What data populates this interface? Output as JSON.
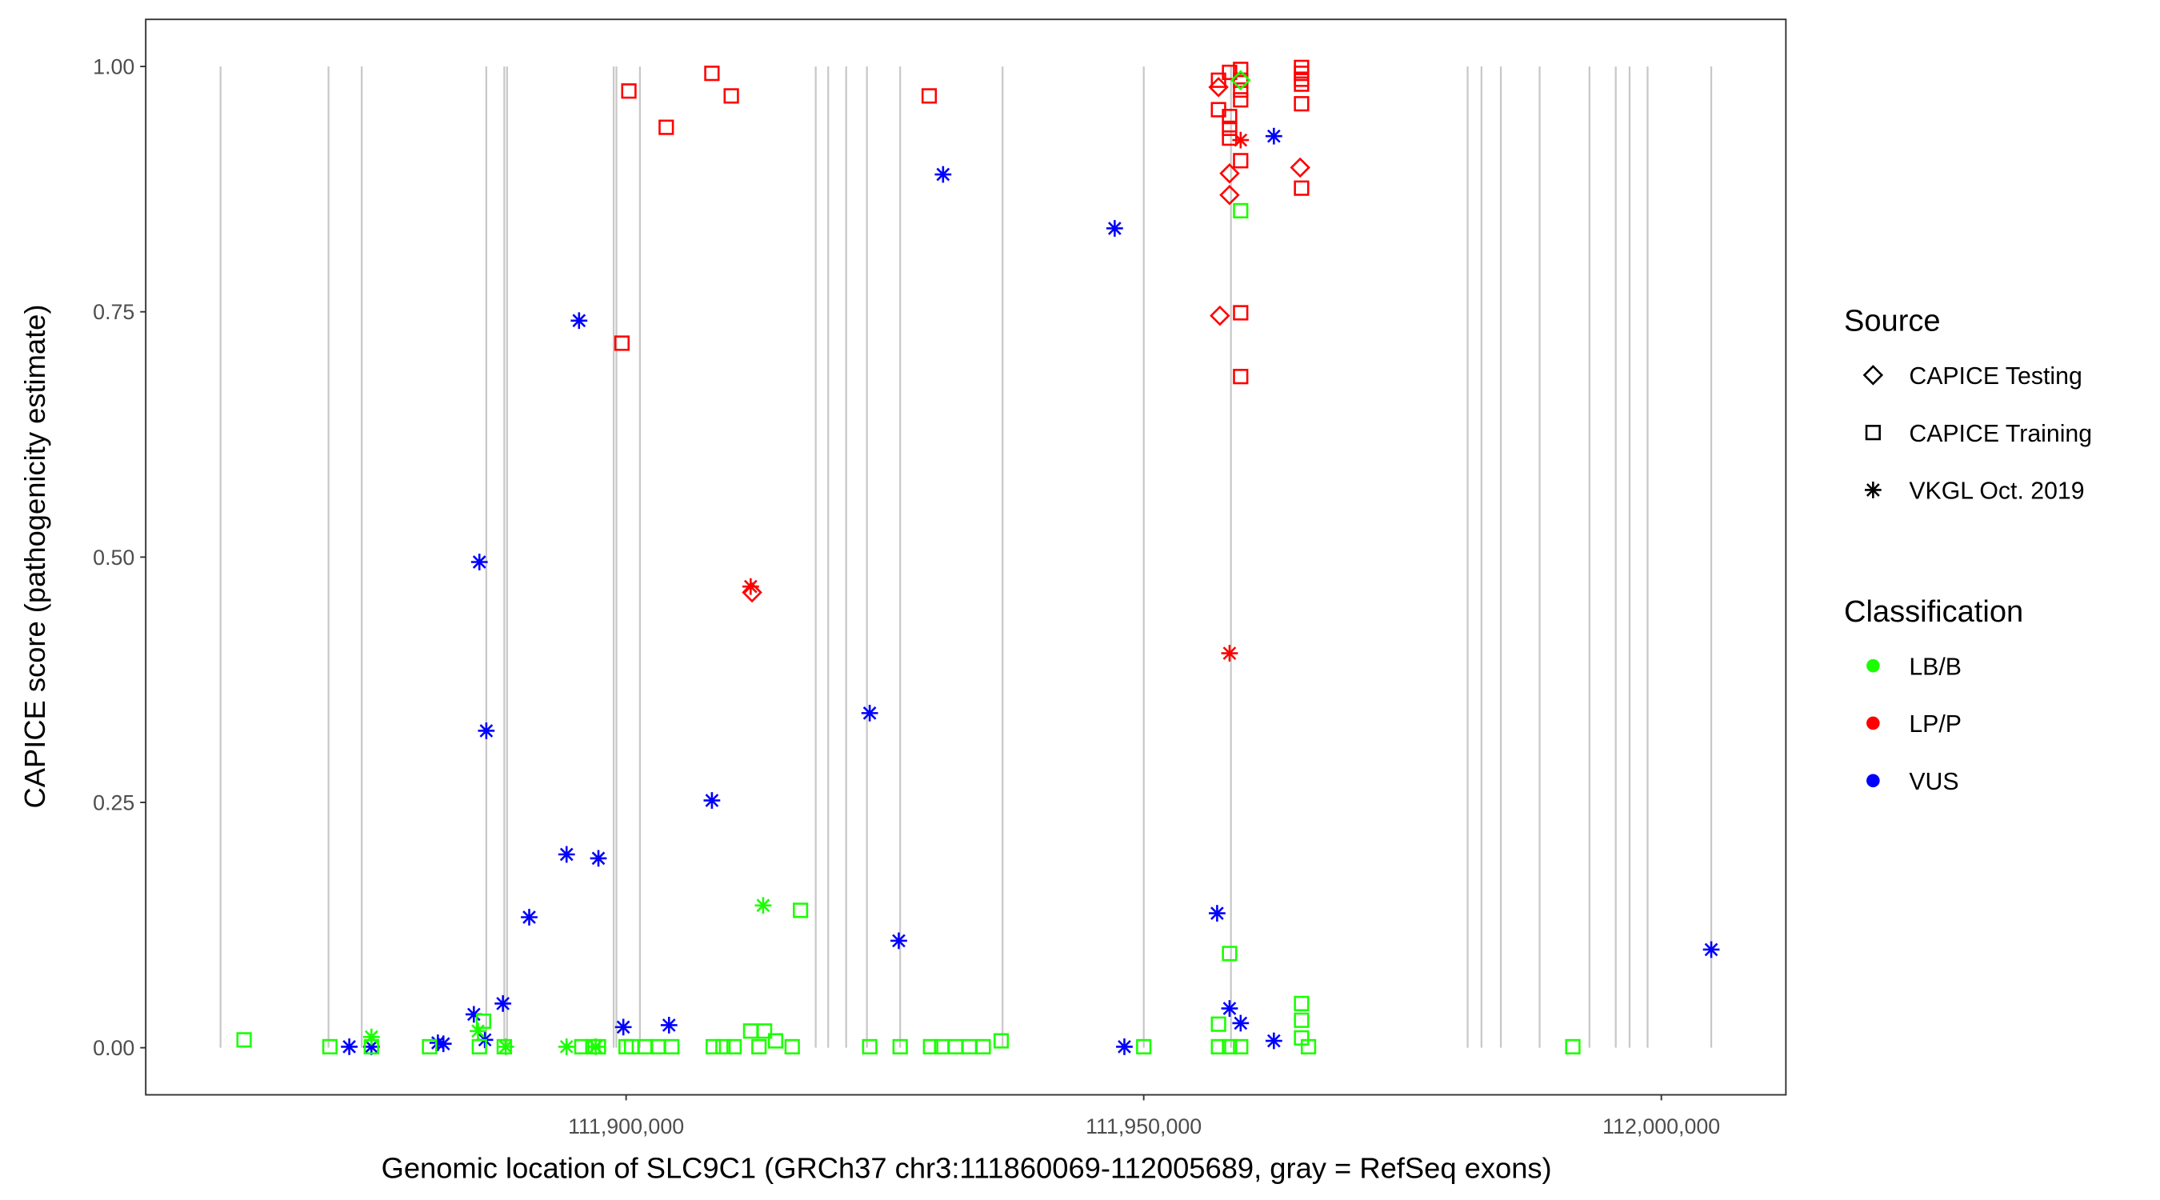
{
  "chart_data": {
    "type": "scatter",
    "title": "",
    "xlabel": "Genomic location of SLC9C1 (GRCh37 chr3:111860069-112005689, gray = RefSeq exons)",
    "ylabel": "CAPICE score (pathogenicity estimate)",
    "xlim": [
      111853600,
      112012030
    ],
    "ylim": [
      -0.048,
      1.048
    ],
    "x_ticks": [
      111900000,
      111950000,
      112000000
    ],
    "x_tick_labels": [
      "111,900,000",
      "111,950,000",
      "112,000,000"
    ],
    "y_ticks": [
      0,
      0.25,
      0.5,
      0.75,
      1.0
    ],
    "y_tick_labels": [
      "0.00",
      "0.25",
      "0.50",
      "0.75",
      "1.00"
    ],
    "grid": false,
    "exon_lines": [
      111860826,
      111871254,
      111874463,
      111886496,
      111888234,
      111888500,
      111898797,
      111899064,
      111901337,
      111918317,
      111919520,
      111921258,
      111923264,
      111926473,
      111936366,
      111950004,
      111958427,
      111981290,
      111982627,
      111984498,
      111988242,
      111993055,
      111995596,
      111996932,
      111998671,
      112004821
    ],
    "legend": {
      "placement": "right",
      "source_title": "Source",
      "source_items": [
        {
          "label": "CAPICE Testing",
          "shape": "diamond"
        },
        {
          "label": "CAPICE Training",
          "shape": "square"
        },
        {
          "label": "VKGL Oct. 2019",
          "shape": "asterisk"
        }
      ],
      "class_title": "Classification",
      "class_items": [
        {
          "label": "LB/B",
          "color": "#1aff00"
        },
        {
          "label": "LP/P",
          "color": "#ff0000"
        },
        {
          "label": "VUS",
          "color": "#0000ff"
        }
      ]
    },
    "points": [
      [
        111908289,
        0.993,
        "square",
        "LP/P"
      ],
      [
        111900267,
        0.975,
        "square",
        "LP/P"
      ],
      [
        111910161,
        0.97,
        "square",
        "LP/P"
      ],
      [
        111929280,
        0.97,
        "square",
        "LP/P"
      ],
      [
        111903877,
        0.938,
        "square",
        "LP/P"
      ],
      [
        111899599,
        0.718,
        "square",
        "LP/P"
      ],
      [
        111957224,
        0.986,
        "square",
        "LP/P"
      ],
      [
        111958293,
        0.994,
        "square",
        "LP/P"
      ],
      [
        111959363,
        0.997,
        "square",
        "LP/P"
      ],
      [
        111959363,
        0.986,
        "square",
        "LP/P"
      ],
      [
        111959363,
        0.976,
        "square",
        "LP/P"
      ],
      [
        111959363,
        0.966,
        "square",
        "LP/P"
      ],
      [
        111957224,
        0.956,
        "square",
        "LP/P"
      ],
      [
        111958293,
        0.949,
        "square",
        "LP/P"
      ],
      [
        111958293,
        0.937,
        "square",
        "LP/P"
      ],
      [
        111958293,
        0.927,
        "square",
        "LP/P"
      ],
      [
        111959363,
        0.904,
        "square",
        "LP/P"
      ],
      [
        111959363,
        0.749,
        "square",
        "LP/P"
      ],
      [
        111959363,
        0.684,
        "square",
        "LP/P"
      ],
      [
        111965246,
        0.999,
        "square",
        "LP/P"
      ],
      [
        111965246,
        0.993,
        "square",
        "LP/P"
      ],
      [
        111965246,
        0.987,
        "square",
        "LP/P"
      ],
      [
        111965246,
        0.982,
        "square",
        "LP/P"
      ],
      [
        111965246,
        0.962,
        "square",
        "LP/P"
      ],
      [
        111965246,
        0.876,
        "square",
        "LP/P"
      ],
      [
        111957224,
        0.979,
        "diamond",
        "LP/P"
      ],
      [
        111958293,
        0.891,
        "diamond",
        "LP/P"
      ],
      [
        111958293,
        0.869,
        "diamond",
        "LP/P"
      ],
      [
        111957357,
        0.746,
        "diamond",
        "LP/P"
      ],
      [
        111965112,
        0.897,
        "diamond",
        "LP/P"
      ],
      [
        111912167,
        0.464,
        "diamond",
        "LP/P"
      ],
      [
        111959363,
        0.986,
        "diamond",
        "LB/B"
      ],
      [
        111912033,
        0.47,
        "asterisk",
        "LP/P"
      ],
      [
        111959363,
        0.925,
        "asterisk",
        "LP/P"
      ],
      [
        111958293,
        0.402,
        "asterisk",
        "LP/P"
      ],
      [
        111885828,
        0.495,
        "asterisk",
        "VUS"
      ],
      [
        111886496,
        0.323,
        "asterisk",
        "VUS"
      ],
      [
        111895454,
        0.741,
        "asterisk",
        "VUS"
      ],
      [
        111894251,
        0.197,
        "asterisk",
        "VUS"
      ],
      [
        111897326,
        0.193,
        "asterisk",
        "VUS"
      ],
      [
        111890641,
        0.133,
        "asterisk",
        "VUS"
      ],
      [
        111908289,
        0.252,
        "asterisk",
        "VUS"
      ],
      [
        111923531,
        0.341,
        "asterisk",
        "VUS"
      ],
      [
        111926339,
        0.109,
        "asterisk",
        "VUS"
      ],
      [
        111930618,
        0.89,
        "asterisk",
        "VUS"
      ],
      [
        111947196,
        0.835,
        "asterisk",
        "VUS"
      ],
      [
        111962572,
        0.929,
        "asterisk",
        "VUS"
      ],
      [
        111957090,
        0.137,
        "asterisk",
        "VUS"
      ],
      [
        112004821,
        0.1,
        "asterisk",
        "VUS"
      ],
      [
        111885293,
        0.034,
        "asterisk",
        "VUS"
      ],
      [
        111888101,
        0.045,
        "asterisk",
        "VUS"
      ],
      [
        111899733,
        0.021,
        "asterisk",
        "VUS"
      ],
      [
        111904145,
        0.023,
        "asterisk",
        "VUS"
      ],
      [
        111958293,
        0.04,
        "asterisk",
        "VUS"
      ],
      [
        111959363,
        0.025,
        "asterisk",
        "VUS"
      ],
      [
        111962572,
        0.007,
        "asterisk",
        "VUS"
      ],
      [
        111948132,
        0.001,
        "asterisk",
        "VUS"
      ],
      [
        111873260,
        0.001,
        "asterisk",
        "VUS"
      ],
      [
        111875399,
        0.001,
        "asterisk",
        "VUS"
      ],
      [
        111881817,
        0.005,
        "asterisk",
        "VUS"
      ],
      [
        111882352,
        0.004,
        "asterisk",
        "VUS"
      ],
      [
        111886363,
        0.008,
        "asterisk",
        "VUS"
      ],
      [
        111913236,
        0.145,
        "asterisk",
        "LB/B"
      ],
      [
        111875399,
        0.011,
        "asterisk",
        "LB/B"
      ],
      [
        111885694,
        0.017,
        "asterisk",
        "LB/B"
      ],
      [
        111888368,
        0.001,
        "asterisk",
        "LB/B"
      ],
      [
        111894251,
        0.001,
        "asterisk",
        "LB/B"
      ],
      [
        111897059,
        0.001,
        "asterisk",
        "LB/B"
      ],
      [
        111863099,
        0.008,
        "square",
        "LB/B"
      ],
      [
        111871388,
        0.001,
        "square",
        "LB/B"
      ],
      [
        111875399,
        0.001,
        "square",
        "LB/B"
      ],
      [
        111881015,
        0.001,
        "square",
        "LB/B"
      ],
      [
        111886229,
        0.027,
        "square",
        "LB/B"
      ],
      [
        111885828,
        0.001,
        "square",
        "LB/B"
      ],
      [
        111888234,
        0.001,
        "square",
        "LB/B"
      ],
      [
        111895722,
        0.001,
        "square",
        "LB/B"
      ],
      [
        111896791,
        0.001,
        "square",
        "LB/B"
      ],
      [
        111897326,
        0.001,
        "square",
        "LB/B"
      ],
      [
        111900000,
        0.001,
        "square",
        "LB/B"
      ],
      [
        111900535,
        0.001,
        "square",
        "LB/B"
      ],
      [
        111901872,
        0.001,
        "square",
        "LB/B"
      ],
      [
        111903075,
        0.001,
        "square",
        "LB/B"
      ],
      [
        111904412,
        0.001,
        "square",
        "LB/B"
      ],
      [
        111908423,
        0.001,
        "square",
        "LB/B"
      ],
      [
        111909359,
        0.001,
        "square",
        "LB/B"
      ],
      [
        111910429,
        0.001,
        "square",
        "LB/B"
      ],
      [
        111912033,
        0.017,
        "square",
        "LB/B"
      ],
      [
        111913370,
        0.017,
        "square",
        "LB/B"
      ],
      [
        111912835,
        0.001,
        "square",
        "LB/B"
      ],
      [
        111914440,
        0.007,
        "square",
        "LB/B"
      ],
      [
        111916044,
        0.001,
        "square",
        "LB/B"
      ],
      [
        111916846,
        0.14,
        "square",
        "LB/B"
      ],
      [
        111923531,
        0.001,
        "square",
        "LB/B"
      ],
      [
        111926473,
        0.001,
        "square",
        "LB/B"
      ],
      [
        111929414,
        0.001,
        "square",
        "LB/B"
      ],
      [
        111930484,
        0.001,
        "square",
        "LB/B"
      ],
      [
        111931821,
        0.001,
        "square",
        "LB/B"
      ],
      [
        111933158,
        0.001,
        "square",
        "LB/B"
      ],
      [
        111934495,
        0.001,
        "square",
        "LB/B"
      ],
      [
        111936233,
        0.007,
        "square",
        "LB/B"
      ],
      [
        111950004,
        0.001,
        "square",
        "LB/B"
      ],
      [
        111957224,
        0.024,
        "square",
        "LB/B"
      ],
      [
        111957224,
        0.001,
        "square",
        "LB/B"
      ],
      [
        111958293,
        0.096,
        "square",
        "LB/B"
      ],
      [
        111958293,
        0.001,
        "square",
        "LB/B"
      ],
      [
        111959363,
        0.853,
        "square",
        "LB/B"
      ],
      [
        111959363,
        0.001,
        "square",
        "LB/B"
      ],
      [
        111965246,
        0.045,
        "square",
        "LB/B"
      ],
      [
        111965246,
        0.028,
        "square",
        "LB/B"
      ],
      [
        111965246,
        0.01,
        "square",
        "LB/B"
      ],
      [
        111965914,
        0.001,
        "square",
        "LB/B"
      ],
      [
        111991451,
        0.001,
        "square",
        "LB/B"
      ]
    ]
  }
}
